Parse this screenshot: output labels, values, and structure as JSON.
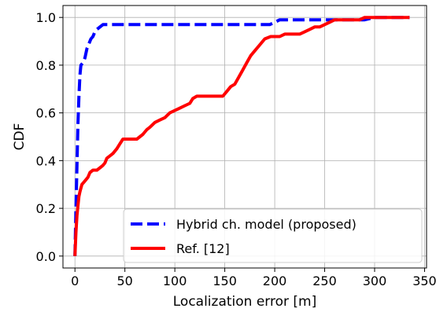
{
  "chart_data": {
    "type": "line",
    "xlabel": "Localization error [m]",
    "ylabel": "CDF",
    "xlim": [
      -12,
      352
    ],
    "ylim": [
      -0.05,
      1.05
    ],
    "xticks": [
      0,
      50,
      100,
      150,
      200,
      250,
      300,
      350
    ],
    "yticks": [
      0.0,
      0.2,
      0.4,
      0.6,
      0.8,
      1.0
    ],
    "xtick_labels": [
      "0",
      "50",
      "100",
      "150",
      "200",
      "250",
      "300",
      "350"
    ],
    "ytick_labels": [
      "0.0",
      "0.2",
      "0.4",
      "0.6",
      "0.8",
      "1.0"
    ],
    "grid": true,
    "legend_position": "lower-right",
    "series": [
      {
        "name": "Hybrid ch. model (proposed)",
        "color": "#0000ff",
        "style": "dashed",
        "x": [
          0,
          1,
          2,
          3,
          4,
          5,
          6,
          8,
          10,
          12,
          14,
          16,
          18,
          20,
          22,
          25,
          28,
          32,
          60,
          100,
          150,
          195,
          200,
          205,
          250,
          290,
          300,
          310,
          320,
          335
        ],
        "y": [
          0,
          0.2,
          0.38,
          0.55,
          0.67,
          0.76,
          0.8,
          0.81,
          0.83,
          0.87,
          0.89,
          0.91,
          0.92,
          0.94,
          0.95,
          0.96,
          0.97,
          0.97,
          0.97,
          0.97,
          0.97,
          0.97,
          0.98,
          0.99,
          0.99,
          0.99,
          1.0,
          1.0,
          1.0,
          1.0
        ]
      },
      {
        "name": "Ref. [12]",
        "color": "#ff0000",
        "style": "solid",
        "x": [
          0,
          1,
          2,
          3,
          4,
          5,
          7,
          9,
          11,
          13,
          15,
          18,
          22,
          25,
          28,
          30,
          32,
          35,
          38,
          42,
          45,
          48,
          52,
          58,
          62,
          65,
          68,
          72,
          75,
          80,
          85,
          90,
          95,
          100,
          105,
          110,
          115,
          118,
          122,
          128,
          135,
          142,
          148,
          152,
          156,
          160,
          164,
          168,
          172,
          176,
          180,
          184,
          190,
          196,
          200,
          205,
          210,
          215,
          220,
          225,
          230,
          235,
          240,
          245,
          250,
          255,
          260,
          265,
          270,
          275,
          280,
          285,
          290,
          300,
          310,
          320,
          335
        ],
        "y": [
          0,
          0.1,
          0.17,
          0.21,
          0.25,
          0.27,
          0.3,
          0.31,
          0.32,
          0.33,
          0.35,
          0.36,
          0.36,
          0.37,
          0.38,
          0.39,
          0.41,
          0.42,
          0.43,
          0.45,
          0.47,
          0.49,
          0.49,
          0.49,
          0.49,
          0.5,
          0.51,
          0.53,
          0.54,
          0.56,
          0.57,
          0.58,
          0.6,
          0.61,
          0.62,
          0.63,
          0.64,
          0.66,
          0.67,
          0.67,
          0.67,
          0.67,
          0.67,
          0.69,
          0.71,
          0.72,
          0.75,
          0.78,
          0.81,
          0.84,
          0.86,
          0.88,
          0.91,
          0.92,
          0.92,
          0.92,
          0.93,
          0.93,
          0.93,
          0.93,
          0.94,
          0.95,
          0.96,
          0.96,
          0.97,
          0.98,
          0.99,
          0.99,
          0.99,
          0.99,
          0.99,
          0.99,
          1.0,
          1.0,
          1.0,
          1.0,
          1.0
        ]
      }
    ]
  }
}
